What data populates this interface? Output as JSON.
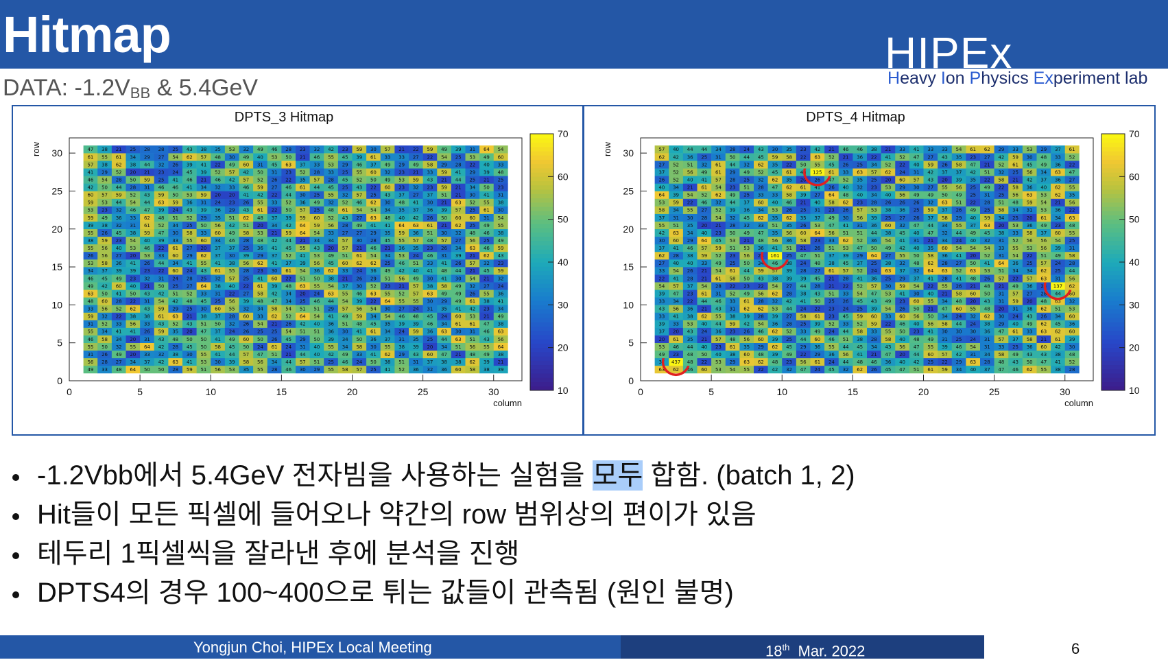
{
  "slide": {
    "title": "Hitmap",
    "subtitle_prefix": "DATA: -1.2V",
    "subtitle_sub": "BB",
    "subtitle_suffix": " & 5.4GeV"
  },
  "logo": {
    "main": "HIPEx",
    "sub": [
      {
        "cap": "H",
        "rest": "eavy "
      },
      {
        "cap": "I",
        "rest": "on "
      },
      {
        "cap": "P",
        "rest": "hysics "
      },
      {
        "cap": "Ex",
        "rest": "periment lab"
      }
    ]
  },
  "chart_data": [
    {
      "type": "heatmap",
      "title": "DPTS_3 Hitmap",
      "xlabel": "column",
      "ylabel": "row",
      "xlim": [
        0,
        32
      ],
      "ylim": [
        0,
        32
      ],
      "x_ticks": [
        0,
        5,
        10,
        15,
        20,
        25,
        30
      ],
      "y_ticks": [
        0,
        5,
        10,
        15,
        20,
        25,
        30
      ],
      "colorbar_ticks": [
        10,
        20,
        30,
        40,
        50,
        60,
        70
      ],
      "color_range": [
        10,
        70
      ],
      "value_range_approx": [
        20,
        66
      ],
      "highlighted_cells": []
    },
    {
      "type": "heatmap",
      "title": "DPTS_4 Hitmap",
      "xlabel": "column",
      "ylabel": "row",
      "xlim": [
        0,
        32
      ],
      "ylim": [
        0,
        32
      ],
      "x_ticks": [
        0,
        5,
        10,
        15,
        20,
        25,
        30
      ],
      "y_ticks": [
        0,
        5,
        10,
        15,
        20,
        25,
        30
      ],
      "colorbar_ticks": [
        10,
        20,
        30,
        40,
        50,
        60,
        70
      ],
      "color_range": [
        10,
        70
      ],
      "value_range_approx": [
        20,
        66
      ],
      "highlighted_cells": [
        {
          "col": 12,
          "row": 27,
          "value": 125
        },
        {
          "col": 9,
          "row": 16,
          "value": 161
        },
        {
          "col": 29,
          "row": 12,
          "value": 137
        },
        {
          "col": 2,
          "row": 2,
          "value": 437
        }
      ]
    }
  ],
  "bullets": [
    {
      "pre": "-1.2Vbb에서 5.4GeV 전자빔을 사용하는 실험을 ",
      "hl": "모두",
      "post": " 합함. (batch 1, 2)"
    },
    {
      "pre": "Hit들이 모든 픽셀에 들어오나 약간의 row 범위상의 편이가 있음",
      "hl": "",
      "post": ""
    },
    {
      "pre": "테두리 1픽셀씩을 잘라낸 후에 분석을 진행",
      "hl": "",
      "post": ""
    },
    {
      "pre": "DPTS4의 경우 100~400으로 튀는 값들이 관측됨 (원인 불명)",
      "hl": "",
      "post": ""
    }
  ],
  "footer": {
    "author": "Yongjun Choi, HIPEx Local Meeting",
    "date_day": "18",
    "date_sup": "th",
    "date_rest": "  Mar. 2022",
    "page": "6"
  },
  "colors": {
    "header_blue": "#2457a6",
    "footer_dark": "#1d3f7e",
    "highlight": "#a9cdfa",
    "circle_red": "#e02020"
  }
}
